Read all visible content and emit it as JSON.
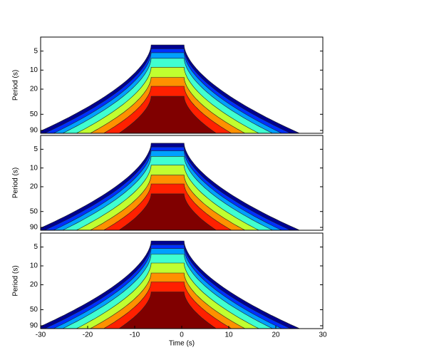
{
  "chart_data": [
    {
      "type": "contour",
      "ylabel": "Period (s)",
      "xlim": [
        -30,
        30
      ],
      "ylim": [
        3,
        100
      ],
      "ylog": true,
      "yinvert": true,
      "yticks": [
        5,
        10,
        20,
        50,
        90
      ],
      "colors": [
        "#00008f",
        "#0030ff",
        "#00a0ff",
        "#40ffd0",
        "#c0ff30",
        "#ff9000",
        "#ff2000",
        "#800000"
      ]
    },
    {
      "type": "contour",
      "ylabel": "Period (s)",
      "xlim": [
        -30,
        30
      ],
      "ylim": [
        3,
        100
      ],
      "ylog": true,
      "yinvert": true,
      "yticks": [
        5,
        10,
        20,
        50,
        90
      ],
      "colors": [
        "#00008f",
        "#0030ff",
        "#00a0ff",
        "#40ffd0",
        "#c0ff30",
        "#ff9000",
        "#ff2000",
        "#800000"
      ]
    },
    {
      "type": "contour",
      "ylabel": "Period (s)",
      "xlabel": "Time (s)",
      "xlim": [
        -30,
        30
      ],
      "ylim": [
        3,
        100
      ],
      "ylog": true,
      "yinvert": true,
      "xticks": [
        -30,
        -20,
        -10,
        0,
        10,
        20,
        30
      ],
      "yticks": [
        5,
        10,
        20,
        50,
        90
      ],
      "colors": [
        "#00008f",
        "#0030ff",
        "#00a0ff",
        "#40ffd0",
        "#c0ff30",
        "#ff9000",
        "#ff2000",
        "#800000"
      ]
    }
  ]
}
